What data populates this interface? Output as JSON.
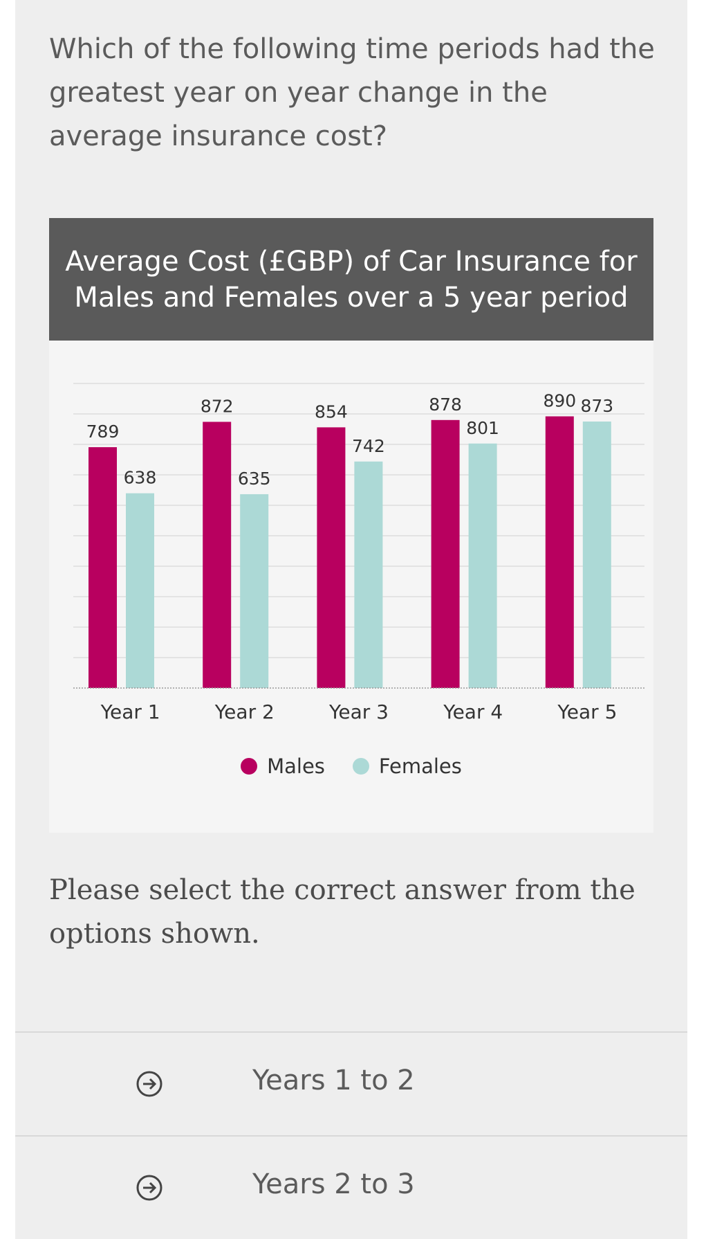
{
  "question": "Which of the following time periods had the greatest year on year change in the average insurance cost?",
  "chart_title": "Average Cost (£GBP) of Car Insurance for Males and Females over a 5 year period",
  "chart_data": {
    "type": "bar",
    "title": "Average Cost (£GBP) of Car Insurance for Males and Females over a 5 year period",
    "categories": [
      "Year 1",
      "Year 2",
      "Year 3",
      "Year 4",
      "Year 5"
    ],
    "series": [
      {
        "name": "Males",
        "color": "#b8005f",
        "values": [
          789,
          872,
          854,
          878,
          890
        ]
      },
      {
        "name": "Females",
        "color": "#acd9d6",
        "values": [
          638,
          635,
          742,
          801,
          873
        ]
      }
    ],
    "ylim": [
      0,
      1000
    ],
    "grid": true,
    "legend": "bottom-center"
  },
  "legend": {
    "males": "Males",
    "females": "Females"
  },
  "instruction": "Please select the correct answer from the options shown.",
  "options": [
    {
      "label": "Years 1 to 2",
      "icon": "arrow-right-circle-icon"
    },
    {
      "label": "Years 2 to 3",
      "icon": "arrow-right-circle-icon"
    }
  ]
}
